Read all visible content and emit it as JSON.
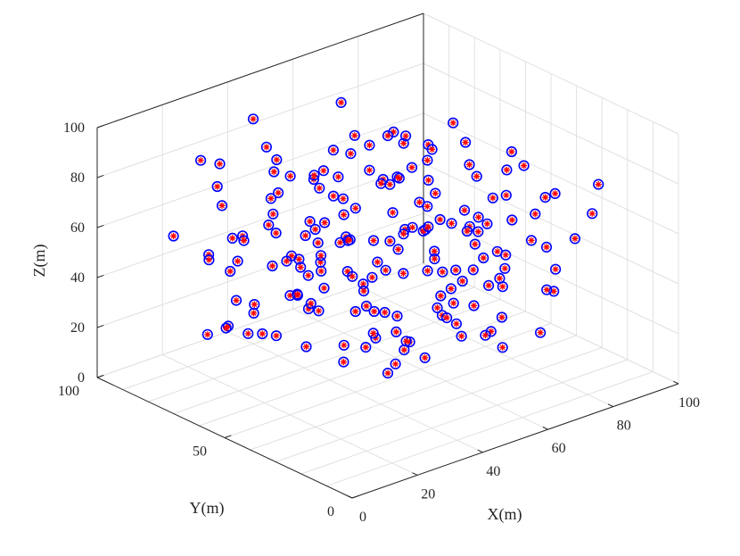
{
  "chart_data": {
    "type": "scatter",
    "projection": "3d",
    "title": "",
    "xlabel": "X(m)",
    "ylabel": "Y(m)",
    "zlabel": "Z(m)",
    "xlim": [
      0,
      100
    ],
    "ylim": [
      0,
      100
    ],
    "zlim": [
      0,
      100
    ],
    "x_ticks": [
      "0",
      "20",
      "40",
      "60",
      "80",
      "100"
    ],
    "y_ticks": [
      "0",
      "50",
      "100"
    ],
    "z_ticks": [
      "0",
      "20",
      "40",
      "60",
      "80",
      "100"
    ],
    "grid": true,
    "colors": {
      "circle": "#0000ff",
      "star": "#ff0000",
      "axis": "#262626",
      "grid": "#e1e1e1"
    },
    "series": [
      {
        "marker": "open-circle",
        "note_values": "approximate sample of visible points",
        "points": [
          [
            48,
            26,
            56
          ],
          [
            40,
            52,
            60
          ],
          [
            61,
            33,
            63
          ],
          [
            22,
            76,
            44
          ],
          [
            34,
            58,
            64
          ],
          [
            55,
            62,
            48
          ],
          [
            26,
            38,
            72
          ],
          [
            73,
            44,
            52
          ],
          [
            47,
            81,
            35
          ],
          [
            63,
            48,
            70
          ],
          [
            31,
            22,
            48
          ],
          [
            52,
            13,
            55
          ],
          [
            79,
            55,
            46
          ],
          [
            44,
            45,
            84
          ],
          [
            38,
            70,
            30
          ],
          [
            68,
            28,
            40
          ],
          [
            57,
            88,
            59
          ],
          [
            19,
            50,
            62
          ],
          [
            85,
            37,
            57
          ],
          [
            29,
            90,
            68
          ],
          [
            45,
            35,
            25
          ],
          [
            60,
            70,
            80
          ],
          [
            35,
            30,
            95
          ],
          [
            80,
            15,
            60
          ],
          [
            15,
            60,
            30
          ],
          [
            90,
            60,
            50
          ],
          [
            10,
            30,
            70
          ],
          [
            50,
            95,
            45
          ],
          [
            70,
            10,
            85
          ],
          [
            25,
            15,
            35
          ],
          [
            55,
            50,
            10
          ],
          [
            65,
            85,
            20
          ],
          [
            40,
            90,
            90
          ],
          [
            85,
            80,
            30
          ],
          [
            20,
            85,
            85
          ],
          [
            5,
            45,
            50
          ],
          [
            95,
            25,
            70
          ],
          [
            30,
            5,
            60
          ],
          [
            75,
            95,
            65
          ],
          [
            50,
            5,
            35
          ],
          [
            45,
            60,
            55
          ],
          [
            58,
            42,
            52
          ],
          [
            36,
            46,
            50
          ],
          [
            66,
            55,
            60
          ],
          [
            42,
            66,
            46
          ],
          [
            53,
            38,
            66
          ],
          [
            28,
            52,
            40
          ],
          [
            71,
            63,
            44
          ],
          [
            49,
            28,
            45
          ],
          [
            62,
            78,
            50
          ],
          [
            33,
            75,
            58
          ],
          [
            74,
            32,
            62
          ],
          [
            57,
            20,
            74
          ],
          [
            24,
            62,
            52
          ],
          [
            82,
            48,
            38
          ],
          [
            43,
            84,
            62
          ],
          [
            67,
            38,
            28
          ],
          [
            38,
            40,
            38
          ],
          [
            52,
            72,
            70
          ],
          [
            61,
            58,
            34
          ],
          [
            46,
            18,
            40
          ],
          [
            78,
            70,
            72
          ],
          [
            27,
            30,
            56
          ],
          [
            56,
            90,
            36
          ],
          [
            88,
            52,
            66
          ],
          [
            34,
            86,
            46
          ],
          [
            64,
            22,
            52
          ],
          [
            41,
            56,
            74
          ],
          [
            72,
            80,
            56
          ],
          [
            21,
            40,
            46
          ],
          [
            59,
            46,
            86
          ],
          [
            47,
            92,
            54
          ],
          [
            83,
            30,
            48
          ],
          [
            31,
            64,
            36
          ],
          [
            68,
            66,
            82
          ],
          [
            54,
            32,
            32
          ],
          [
            37,
            78,
            76
          ],
          [
            76,
            54,
            26
          ],
          [
            44,
            24,
            64
          ],
          [
            63,
            88,
            68
          ],
          [
            18,
            70,
            62
          ],
          [
            86,
            66,
            44
          ],
          [
            51,
            48,
            20
          ],
          [
            39,
            34,
            80
          ],
          [
            71,
            42,
            76
          ],
          [
            29,
            82,
            42
          ],
          [
            58,
            14,
            64
          ],
          [
            45,
            70,
            40
          ],
          [
            79,
            22,
            36
          ],
          [
            35,
            56,
            88
          ],
          [
            65,
            96,
            48
          ],
          [
            23,
            46,
            78
          ],
          [
            53,
            80,
            28
          ],
          [
            87,
            44,
            72
          ],
          [
            42,
            14,
            52
          ],
          [
            60,
            64,
            16
          ],
          [
            32,
            92,
            58
          ],
          [
            74,
            74,
            38
          ],
          [
            48,
            38,
            92
          ],
          [
            66,
            30,
            22
          ],
          [
            13,
            55,
            45
          ],
          [
            92,
            42,
            58
          ],
          [
            26,
            25,
            42
          ],
          [
            55,
            100,
            62
          ],
          [
            81,
            86,
            50
          ],
          [
            38,
            8,
            70
          ],
          [
            69,
            12,
            46
          ],
          [
            17,
            78,
            52
          ],
          [
            91,
            72,
            66
          ],
          [
            43,
            98,
            38
          ],
          [
            58,
            58,
            92
          ],
          [
            35,
            48,
            22
          ],
          [
            77,
            36,
            86
          ],
          [
            24,
            34,
            86
          ],
          [
            63,
            94,
            28
          ],
          [
            49,
            4,
            48
          ],
          [
            84,
            60,
            24
          ],
          [
            30,
            72,
            92
          ],
          [
            70,
            50,
            94
          ],
          [
            46,
            76,
            18
          ],
          [
            10,
            48,
            38
          ],
          [
            94,
            50,
            36
          ],
          [
            20,
            20,
            58
          ],
          [
            56,
            76,
            96
          ],
          [
            78,
            26,
            18
          ],
          [
            36,
            98,
            70
          ],
          [
            67,
            6,
            58
          ],
          [
            14,
            88,
            56
          ],
          [
            89,
            84,
            46
          ],
          [
            41,
            18,
            84
          ],
          [
            3,
            60,
            65
          ],
          [
            5,
            55,
            40
          ],
          [
            8,
            40,
            42
          ],
          [
            97,
            30,
            55
          ],
          [
            2,
            48,
            55
          ],
          [
            98,
            65,
            45
          ],
          [
            12,
            10,
            50
          ],
          [
            90,
            95,
            55
          ],
          [
            50,
            50,
            98
          ],
          [
            50,
            50,
            3
          ],
          [
            33,
            33,
            33
          ],
          [
            66,
            66,
            66
          ],
          [
            33,
            66,
            50
          ],
          [
            66,
            33,
            50
          ],
          [
            44,
            55,
            28
          ],
          [
            55,
            44,
            72
          ],
          [
            40,
            62,
            62
          ],
          [
            60,
            38,
            38
          ],
          [
            47,
            47,
            47
          ],
          [
            53,
            53,
            53
          ],
          [
            25,
            50,
            25
          ],
          [
            75,
            50,
            75
          ],
          [
            50,
            25,
            75
          ],
          [
            50,
            75,
            25
          ],
          [
            30,
            40,
            70
          ],
          [
            70,
            60,
            30
          ],
          [
            40,
            30,
            30
          ],
          [
            60,
            70,
            70
          ],
          [
            35,
            65,
            45
          ],
          [
            65,
            35,
            55
          ],
          [
            22,
            58,
            68
          ],
          [
            78,
            42,
            32
          ],
          [
            58,
            22,
            28
          ],
          [
            42,
            78,
            72
          ],
          [
            28,
            28,
            62
          ],
          [
            72,
            72,
            38
          ],
          [
            16,
            42,
            54
          ],
          [
            84,
            58,
            46
          ],
          [
            46,
            16,
            36
          ],
          [
            54,
            84,
            64
          ],
          [
            38,
            52,
            12
          ],
          [
            62,
            48,
            88
          ],
          [
            52,
            38,
            14
          ],
          [
            48,
            62,
            86
          ],
          [
            31,
            47,
            84
          ],
          [
            69,
            53,
            16
          ],
          [
            43,
            37,
            62
          ],
          [
            57,
            63,
            38
          ],
          [
            37,
            43,
            48
          ],
          [
            63,
            57,
            52
          ],
          [
            1,
            58,
            37
          ],
          [
            2,
            52,
            42
          ]
        ]
      }
    ]
  }
}
